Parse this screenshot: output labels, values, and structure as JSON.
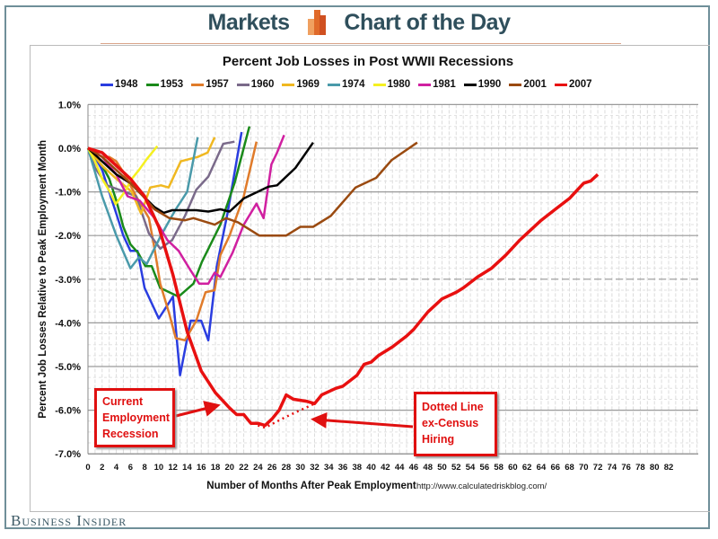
{
  "header": {
    "left": "Markets",
    "right": "Chart of the Day",
    "logo_icon": "bar-chart-logo"
  },
  "footer": {
    "brand": "Business Insider"
  },
  "annotations": {
    "current": [
      "Current",
      "Employment",
      "Recession"
    ],
    "dotted": [
      "Dotted Line",
      "ex-Census",
      "Hiring"
    ]
  },
  "chart_data": {
    "type": "line",
    "title": "Percent Job Losses in Post WWII Recessions",
    "xlabel": "Number of Months After Peak Employment",
    "source": "http://www.calculatedriskblog.com/",
    "ylabel": "Percent Job Losses Relative to Peak Employment Month",
    "xlim": [
      0,
      82
    ],
    "ylim": [
      -7,
      1
    ],
    "xticks": [
      0,
      2,
      4,
      6,
      8,
      10,
      12,
      14,
      16,
      18,
      20,
      22,
      24,
      26,
      28,
      30,
      32,
      34,
      36,
      38,
      40,
      42,
      44,
      46,
      48,
      50,
      52,
      54,
      56,
      58,
      60,
      62,
      64,
      66,
      68,
      70,
      72,
      74,
      76,
      78,
      80,
      82
    ],
    "yticks": [
      "1.0%",
      "0.0%",
      "-1.0%",
      "-2.0%",
      "-3.0%",
      "-4.0%",
      "-5.0%",
      "-6.0%",
      "-7.0%"
    ],
    "grid": true,
    "legend_position": "top",
    "series": [
      {
        "name": "1948",
        "color": "#2a3de0",
        "points": [
          [
            0,
            0
          ],
          [
            1,
            -0.2
          ],
          [
            2,
            -0.5
          ],
          [
            3,
            -1.0
          ],
          [
            4,
            -1.5
          ],
          [
            5,
            -2.0
          ],
          [
            6,
            -2.35
          ],
          [
            7,
            -2.35
          ],
          [
            8,
            -3.2
          ],
          [
            10,
            -3.9
          ],
          [
            12,
            -3.4
          ],
          [
            13,
            -5.2
          ],
          [
            14.5,
            -3.95
          ],
          [
            16,
            -3.95
          ],
          [
            17,
            -4.4
          ],
          [
            18.2,
            -2.7
          ],
          [
            19.7,
            -1.5
          ],
          [
            21.7,
            0.37
          ]
        ]
      },
      {
        "name": "1953",
        "color": "#1a8a1a",
        "points": [
          [
            0,
            0
          ],
          [
            1,
            -0.2
          ],
          [
            2,
            -0.4
          ],
          [
            3,
            -0.7
          ],
          [
            4,
            -1.2
          ],
          [
            5,
            -1.8
          ],
          [
            6,
            -2.2
          ],
          [
            7.1,
            -2.4
          ],
          [
            8.1,
            -2.7
          ],
          [
            9,
            -2.7
          ],
          [
            10.2,
            -3.2
          ],
          [
            12.8,
            -3.4
          ],
          [
            14.9,
            -3.1
          ],
          [
            16.1,
            -2.6
          ],
          [
            18.7,
            -1.75
          ],
          [
            20.7,
            -0.8
          ],
          [
            22.8,
            0.5
          ]
        ]
      },
      {
        "name": "1957",
        "color": "#e07b2a",
        "points": [
          [
            0,
            0
          ],
          [
            1,
            -0.1
          ],
          [
            2,
            -0.2
          ],
          [
            3,
            -0.2
          ],
          [
            4,
            -0.3
          ],
          [
            5.2,
            -0.6
          ],
          [
            6.8,
            -1.1
          ],
          [
            8.6,
            -1.6
          ],
          [
            9.4,
            -2.3
          ],
          [
            10.2,
            -3.1
          ],
          [
            11.5,
            -3.8
          ],
          [
            12.4,
            -4.35
          ],
          [
            13.7,
            -4.4
          ],
          [
            15.3,
            -3.95
          ],
          [
            16.6,
            -3.3
          ],
          [
            17.9,
            -3.25
          ],
          [
            18.7,
            -2.45
          ],
          [
            20,
            -2.0
          ],
          [
            22,
            -1.1
          ],
          [
            23.8,
            0.15
          ]
        ]
      },
      {
        "name": "1960",
        "color": "#7a6a8a",
        "points": [
          [
            0,
            0
          ],
          [
            1,
            -0.45
          ],
          [
            2.7,
            -0.85
          ],
          [
            5.2,
            -1.0
          ],
          [
            6.8,
            -1.1
          ],
          [
            8.6,
            -1.95
          ],
          [
            10.2,
            -2.3
          ],
          [
            11.9,
            -2.1
          ],
          [
            13.7,
            -1.55
          ],
          [
            15.3,
            -0.95
          ],
          [
            17,
            -0.65
          ],
          [
            19.1,
            0.1
          ],
          [
            20.7,
            0.15
          ]
        ]
      },
      {
        "name": "1969",
        "color": "#f0b820",
        "points": [
          [
            0,
            0
          ],
          [
            2,
            -0.4
          ],
          [
            4,
            -0.7
          ],
          [
            6.2,
            -1.0
          ],
          [
            7.5,
            -1.5
          ],
          [
            8.8,
            -0.9
          ],
          [
            10.3,
            -0.85
          ],
          [
            11.4,
            -0.9
          ],
          [
            13.1,
            -0.3
          ],
          [
            15.5,
            -0.2
          ],
          [
            16.9,
            -0.1
          ],
          [
            17.9,
            0.25
          ]
        ]
      },
      {
        "name": "1974",
        "color": "#4a9aaa",
        "points": [
          [
            0,
            0
          ],
          [
            2,
            -1.1
          ],
          [
            4,
            -2.0
          ],
          [
            6,
            -2.75
          ],
          [
            7.2,
            -2.5
          ],
          [
            8.3,
            -2.65
          ],
          [
            10.3,
            -2.0
          ],
          [
            12.4,
            -1.4
          ],
          [
            14,
            -1.0
          ],
          [
            15.5,
            0.25
          ]
        ]
      },
      {
        "name": "1980",
        "color": "#f5f020",
        "points": [
          [
            0,
            0
          ],
          [
            1,
            -0.3
          ],
          [
            2,
            -0.7
          ],
          [
            3.1,
            -1.0
          ],
          [
            3.9,
            -1.28
          ],
          [
            5.2,
            -1.0
          ],
          [
            6.2,
            -0.7
          ],
          [
            7.2,
            -0.5
          ],
          [
            8.3,
            -0.25
          ],
          [
            9.8,
            0.05
          ]
        ]
      },
      {
        "name": "1981",
        "color": "#d020a0",
        "points": [
          [
            0,
            0
          ],
          [
            2,
            -0.2
          ],
          [
            4,
            -0.6
          ],
          [
            5.6,
            -1.1
          ],
          [
            7.3,
            -1.2
          ],
          [
            9.4,
            -1.6
          ],
          [
            11.2,
            -2.1
          ],
          [
            12.8,
            -2.35
          ],
          [
            14.5,
            -2.8
          ],
          [
            15.7,
            -3.1
          ],
          [
            17,
            -3.1
          ],
          [
            17.9,
            -2.85
          ],
          [
            18.7,
            -2.95
          ],
          [
            20.4,
            -2.4
          ],
          [
            22,
            -1.75
          ],
          [
            23.8,
            -1.27
          ],
          [
            24.8,
            -1.6
          ],
          [
            25.9,
            -0.37
          ],
          [
            26.7,
            -0.1
          ],
          [
            27.7,
            0.3
          ]
        ]
      },
      {
        "name": "1990",
        "color": "#000000",
        "points": [
          [
            0,
            0
          ],
          [
            2,
            -0.3
          ],
          [
            4,
            -0.6
          ],
          [
            6,
            -0.8
          ],
          [
            7.2,
            -1.0
          ],
          [
            9.4,
            -1.35
          ],
          [
            10.7,
            -1.48
          ],
          [
            11.9,
            -1.42
          ],
          [
            15.3,
            -1.42
          ],
          [
            17,
            -1.45
          ],
          [
            18.7,
            -1.4
          ],
          [
            20,
            -1.45
          ],
          [
            22,
            -1.15
          ],
          [
            25.5,
            -0.88
          ],
          [
            26.7,
            -0.85
          ],
          [
            29.3,
            -0.45
          ],
          [
            31.8,
            0.13
          ]
        ]
      },
      {
        "name": "2001",
        "color": "#9a4a10",
        "points": [
          [
            0,
            0
          ],
          [
            2,
            -0.2
          ],
          [
            4,
            -0.5
          ],
          [
            6,
            -0.8
          ],
          [
            7.8,
            -1.1
          ],
          [
            9.4,
            -1.4
          ],
          [
            11.5,
            -1.6
          ],
          [
            13.7,
            -1.65
          ],
          [
            14.9,
            -1.6
          ],
          [
            17.9,
            -1.75
          ],
          [
            19.5,
            -1.6
          ],
          [
            21.2,
            -1.7
          ],
          [
            24.2,
            -2.0
          ],
          [
            28,
            -2.0
          ],
          [
            30,
            -1.8
          ],
          [
            31.8,
            -1.8
          ],
          [
            34.3,
            -1.55
          ],
          [
            37.8,
            -0.9
          ],
          [
            40.7,
            -0.68
          ],
          [
            42.9,
            -0.27
          ],
          [
            46.5,
            0.13
          ]
        ]
      },
      {
        "name": "2007",
        "color": "#e81010",
        "points": [
          [
            0,
            0
          ],
          [
            2,
            -0.1
          ],
          [
            4,
            -0.4
          ],
          [
            6,
            -0.7
          ],
          [
            8,
            -1.1
          ],
          [
            10,
            -1.8
          ],
          [
            12,
            -2.9
          ],
          [
            14,
            -4.2
          ],
          [
            16,
            -5.1
          ],
          [
            18,
            -5.6
          ],
          [
            20,
            -5.95
          ],
          [
            21,
            -6.1
          ],
          [
            22,
            -6.1
          ],
          [
            23,
            -6.3
          ],
          [
            24,
            -6.3
          ],
          [
            25,
            -6.35
          ],
          [
            26,
            -6.2
          ],
          [
            27,
            -6.0
          ],
          [
            28,
            -5.65
          ],
          [
            29,
            -5.75
          ],
          [
            31,
            -5.8
          ],
          [
            32,
            -5.85
          ],
          [
            33,
            -5.65
          ],
          [
            35,
            -5.5
          ],
          [
            36,
            -5.45
          ],
          [
            38,
            -5.2
          ],
          [
            39,
            -4.95
          ],
          [
            40,
            -4.9
          ],
          [
            41,
            -4.75
          ],
          [
            43,
            -4.55
          ],
          [
            45,
            -4.3
          ],
          [
            46,
            -4.15
          ],
          [
            48,
            -3.75
          ],
          [
            50,
            -3.45
          ],
          [
            52,
            -3.3
          ],
          [
            53,
            -3.2
          ],
          [
            55,
            -2.95
          ],
          [
            57,
            -2.75
          ],
          [
            59,
            -2.45
          ],
          [
            61,
            -2.1
          ],
          [
            62,
            -1.95
          ],
          [
            64,
            -1.65
          ],
          [
            66,
            -1.4
          ],
          [
            68,
            -1.15
          ],
          [
            70,
            -0.8
          ],
          [
            71,
            -0.75
          ],
          [
            72,
            -0.6
          ]
        ]
      }
    ],
    "dotted_series": {
      "name": "2007 ex-Census",
      "color": "#e81010",
      "points": [
        [
          24,
          -6.35
        ],
        [
          25,
          -6.4
        ],
        [
          28,
          -6.15
        ],
        [
          32,
          -5.85
        ]
      ]
    }
  }
}
